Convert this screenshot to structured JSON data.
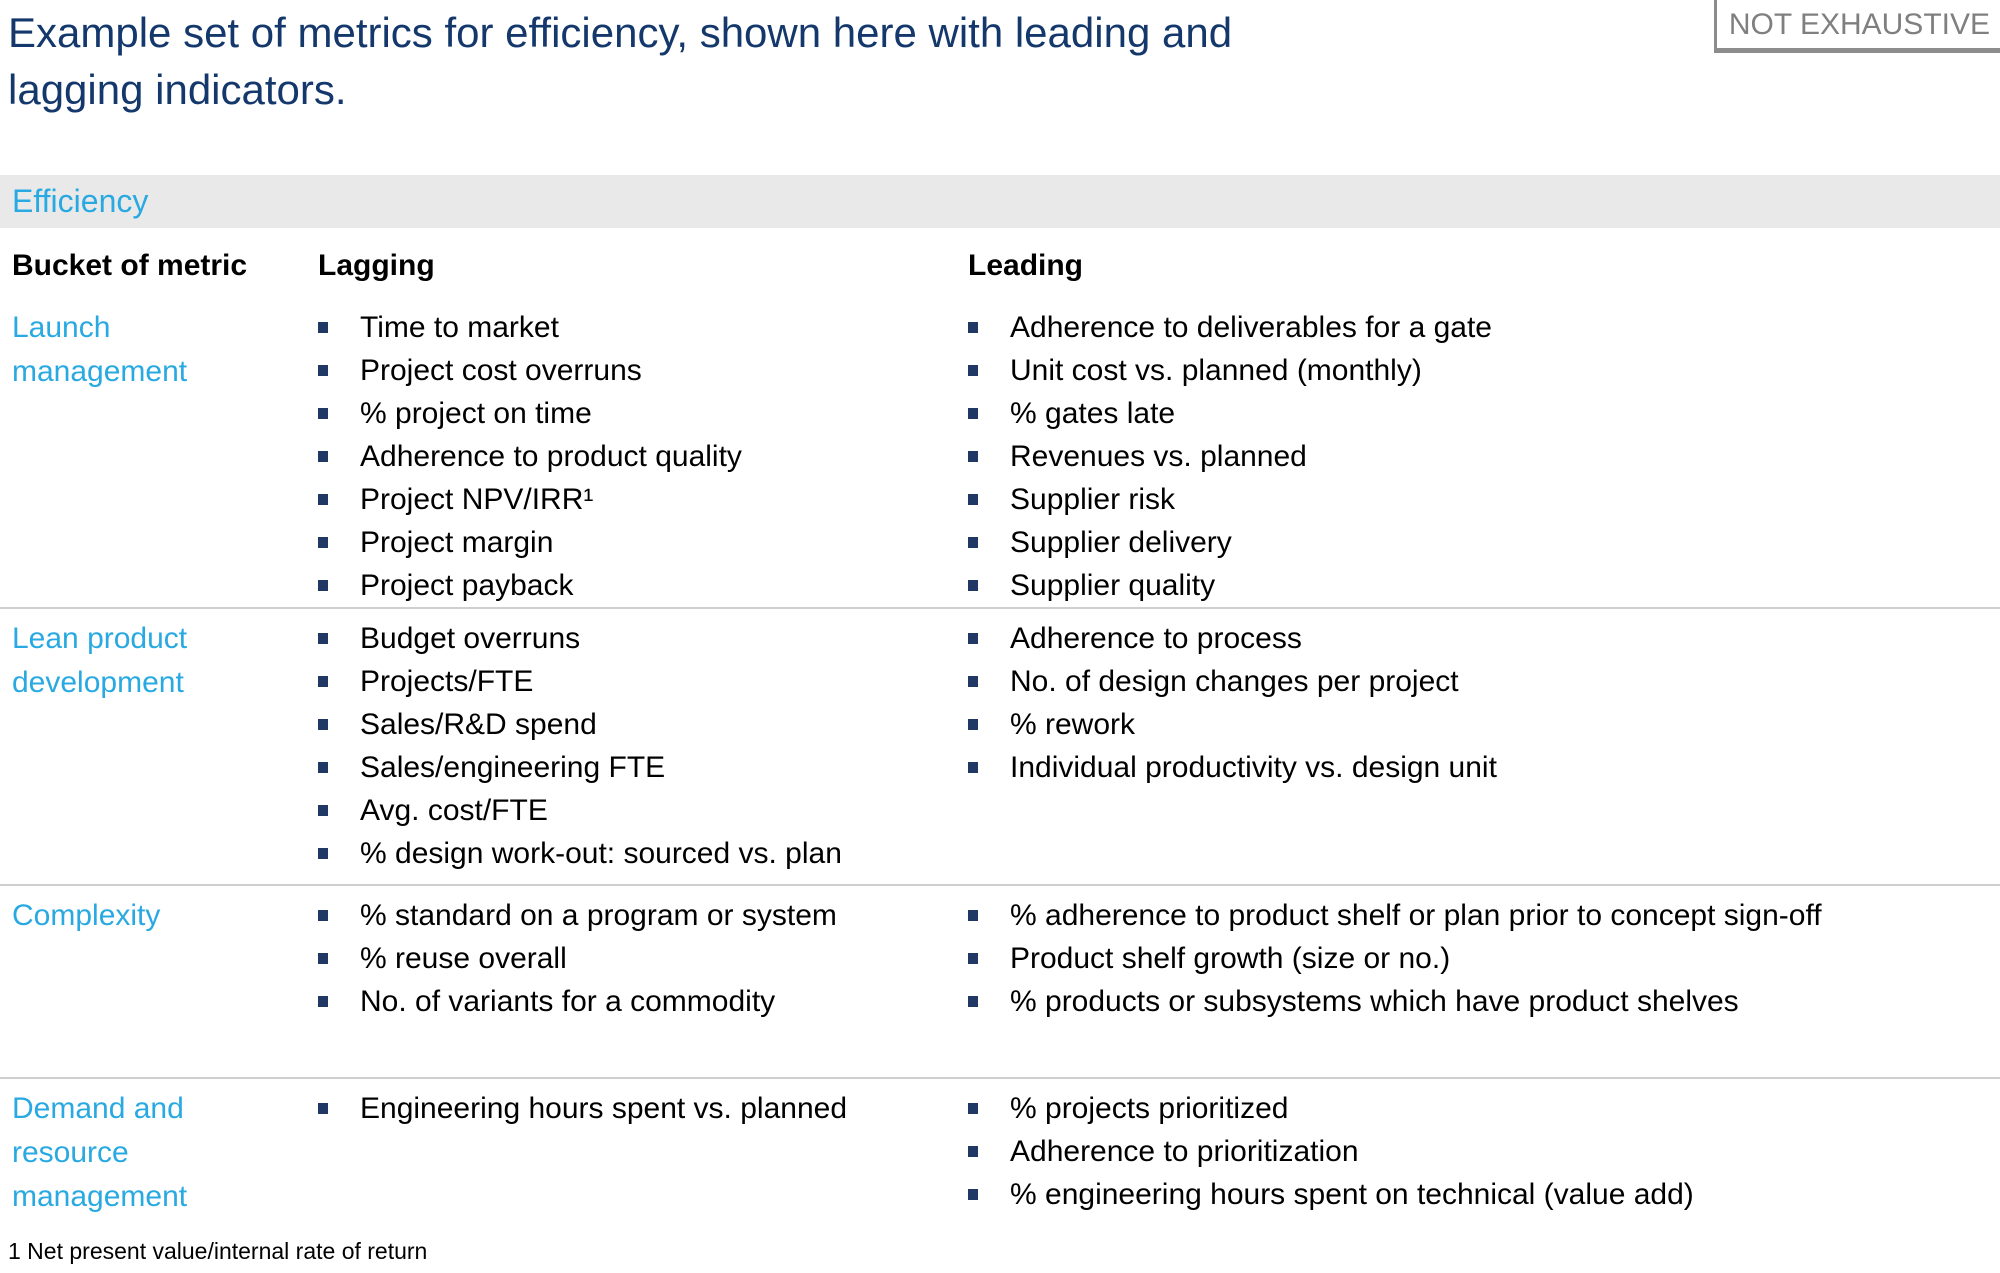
{
  "slide": {
    "title": "Example set of metrics for efficiency, shown here with leading and lagging indicators.",
    "stamp": "NOT EXHAUSTIVE",
    "section_label": "Efficiency",
    "footnote": "1 Net present value/internal rate of return",
    "colors": {
      "title_navy": "#14386B",
      "accent_cyan": "#29A9E1",
      "bullet_navy": "#1F3864",
      "banner_gray": "#E9E9E9",
      "stamp_gray": "#7F7F7F",
      "divider_gray": "#CFCFCF"
    }
  },
  "table": {
    "headers": {
      "bucket": "Bucket of metric",
      "lagging": "Lagging",
      "leading": "Leading"
    },
    "rows": [
      {
        "bucket": "Launch management",
        "lagging": [
          "Time to market",
          "Project cost overruns",
          "% project on time",
          "Adherence to product quality",
          "Project NPV/IRR¹",
          "Project margin",
          "Project payback"
        ],
        "leading": [
          "Adherence to deliverables for a gate",
          "Unit cost vs. planned (monthly)",
          "% gates late",
          "Revenues vs. planned",
          "Supplier risk",
          "Supplier delivery",
          "Supplier quality"
        ]
      },
      {
        "bucket": "Lean product development",
        "lagging": [
          "Budget overruns",
          "Projects/FTE",
          "Sales/R&D spend",
          "Sales/engineering FTE",
          "Avg. cost/FTE",
          "% design work-out: sourced vs. plan"
        ],
        "leading": [
          "Adherence to process",
          "No. of design changes per project",
          "% rework",
          "Individual productivity vs. design unit"
        ]
      },
      {
        "bucket": "Complexity",
        "lagging": [
          "% standard on a program or system",
          "% reuse overall",
          "No. of variants for a commodity"
        ],
        "leading": [
          "% adherence to product shelf or plan prior to concept sign-off",
          "Product shelf growth (size or no.)",
          "% products or subsystems which have product shelves"
        ]
      },
      {
        "bucket": "Demand and resource management",
        "lagging": [
          "Engineering hours spent vs. planned"
        ],
        "leading": [
          "% projects prioritized",
          "Adherence to prioritization",
          "% engineering hours spent on technical (value add)"
        ]
      }
    ]
  }
}
